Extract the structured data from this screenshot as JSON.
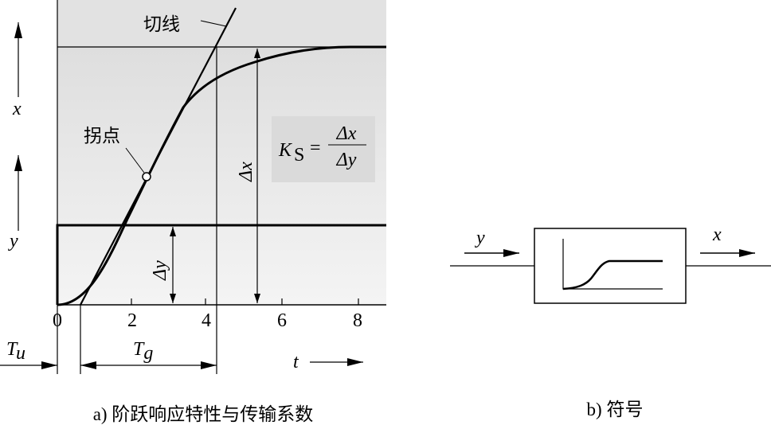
{
  "panel_a": {
    "caption": "a) 阶跃响应特性与传输系数",
    "tangent_label": "切线",
    "inflection_label": "拐点",
    "axis_x_label": "x",
    "axis_y_label": "y",
    "time_label": "t",
    "tick_labels": [
      "0",
      "2",
      "4",
      "6",
      "8"
    ],
    "delta_x_label": "Δx",
    "delta_y_label": "Δy",
    "tu_label": "T",
    "tu_sub": "u",
    "tg_label": "T",
    "tg_sub": "g",
    "formula": {
      "lhs": "K",
      "lhs_sub": "S",
      "eq": "=",
      "num": "Δx",
      "den": "Δy"
    }
  },
  "panel_b": {
    "caption": "b) 符号",
    "input_label": "y",
    "output_label": "x"
  }
}
